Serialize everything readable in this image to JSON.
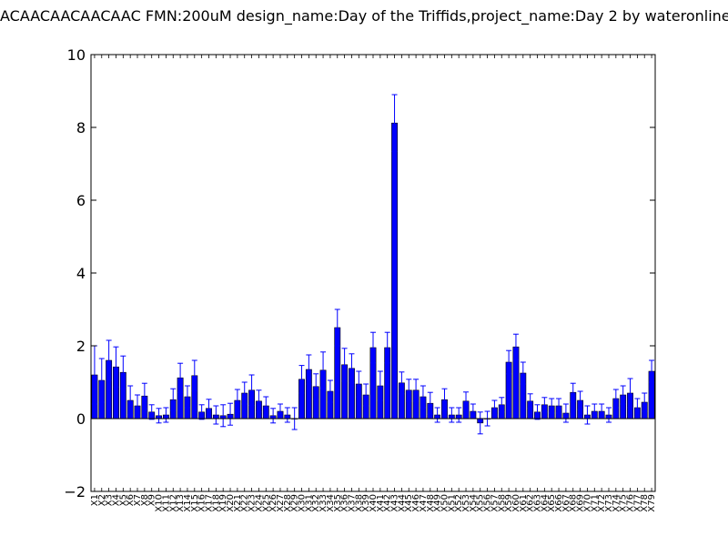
{
  "chart_data": {
    "type": "bar",
    "title": "ACAACAACAACAAC  FMN:200uM  design_name:Day of the Triffids,project_name:Day 2 by wateronline",
    "xlabel": "",
    "ylabel": "",
    "ylim": [
      -2,
      10
    ],
    "yticks": [
      "−2",
      "0",
      "2",
      "4",
      "6",
      "8",
      "10"
    ],
    "grid": false,
    "bar_color": "#0000ff",
    "error_color": "#0000ff",
    "categories": [
      "X1",
      "X2",
      "X3",
      "X4",
      "X5",
      "X6",
      "X7",
      "X8",
      "X9",
      "X10",
      "X11",
      "X12",
      "X13",
      "X14",
      "X15",
      "X16",
      "X17",
      "X18",
      "X19",
      "X20",
      "X21",
      "X22",
      "X23",
      "X24",
      "X25",
      "X26",
      "X27",
      "X28",
      "X29",
      "X30",
      "X31",
      "X32",
      "X33",
      "X34",
      "X35",
      "X36",
      "X37",
      "X38",
      "X39",
      "X40",
      "X41",
      "X42",
      "X43",
      "X44",
      "X45",
      "X46",
      "X47",
      "X48",
      "X49",
      "X50",
      "X51",
      "X52",
      "X53",
      "X54",
      "X55",
      "X56",
      "X57",
      "X58",
      "X59",
      "X60",
      "X61",
      "X62",
      "X63",
      "X64",
      "X65",
      "X66",
      "X67",
      "X68",
      "X69",
      "X70",
      "X71",
      "X72",
      "X73",
      "X74",
      "X75",
      "X76",
      "X77",
      "X78",
      "X79"
    ],
    "values": [
      1.2,
      1.05,
      1.6,
      1.42,
      1.27,
      0.5,
      0.35,
      0.62,
      0.18,
      0.08,
      0.1,
      0.52,
      1.12,
      0.6,
      1.18,
      0.18,
      0.28,
      0.1,
      0.08,
      0.12,
      0.5,
      0.7,
      0.78,
      0.48,
      0.35,
      0.08,
      0.2,
      0.1,
      0.0,
      1.08,
      1.35,
      0.88,
      1.33,
      0.75,
      2.5,
      1.48,
      1.38,
      0.95,
      0.65,
      1.95,
      0.9,
      1.95,
      8.12,
      0.98,
      0.78,
      0.78,
      0.6,
      0.42,
      0.1,
      0.52,
      0.1,
      0.1,
      0.48,
      0.2,
      -0.12,
      0.0,
      0.3,
      0.38,
      1.55,
      1.97,
      1.25,
      0.48,
      0.18,
      0.38,
      0.35,
      0.35,
      0.15,
      0.72,
      0.5,
      0.1,
      0.2,
      0.2,
      0.1,
      0.55,
      0.65,
      0.7,
      0.3,
      0.45,
      1.3
    ],
    "errors": [
      0.8,
      0.6,
      0.55,
      0.55,
      0.45,
      0.4,
      0.3,
      0.35,
      0.2,
      0.2,
      0.2,
      0.3,
      0.4,
      0.3,
      0.42,
      0.2,
      0.25,
      0.25,
      0.3,
      0.3,
      0.3,
      0.3,
      0.42,
      0.3,
      0.25,
      0.2,
      0.2,
      0.2,
      0.3,
      0.38,
      0.4,
      0.35,
      0.5,
      0.3,
      0.5,
      0.45,
      0.4,
      0.35,
      0.3,
      0.42,
      0.4,
      0.42,
      0.78,
      0.3,
      0.3,
      0.3,
      0.3,
      0.3,
      0.2,
      0.3,
      0.2,
      0.2,
      0.25,
      0.2,
      0.3,
      0.2,
      0.2,
      0.2,
      0.32,
      0.35,
      0.3,
      0.2,
      0.2,
      0.2,
      0.2,
      0.2,
      0.25,
      0.25,
      0.25,
      0.25,
      0.2,
      0.2,
      0.2,
      0.25,
      0.25,
      0.4,
      0.25,
      0.25,
      0.3
    ]
  }
}
